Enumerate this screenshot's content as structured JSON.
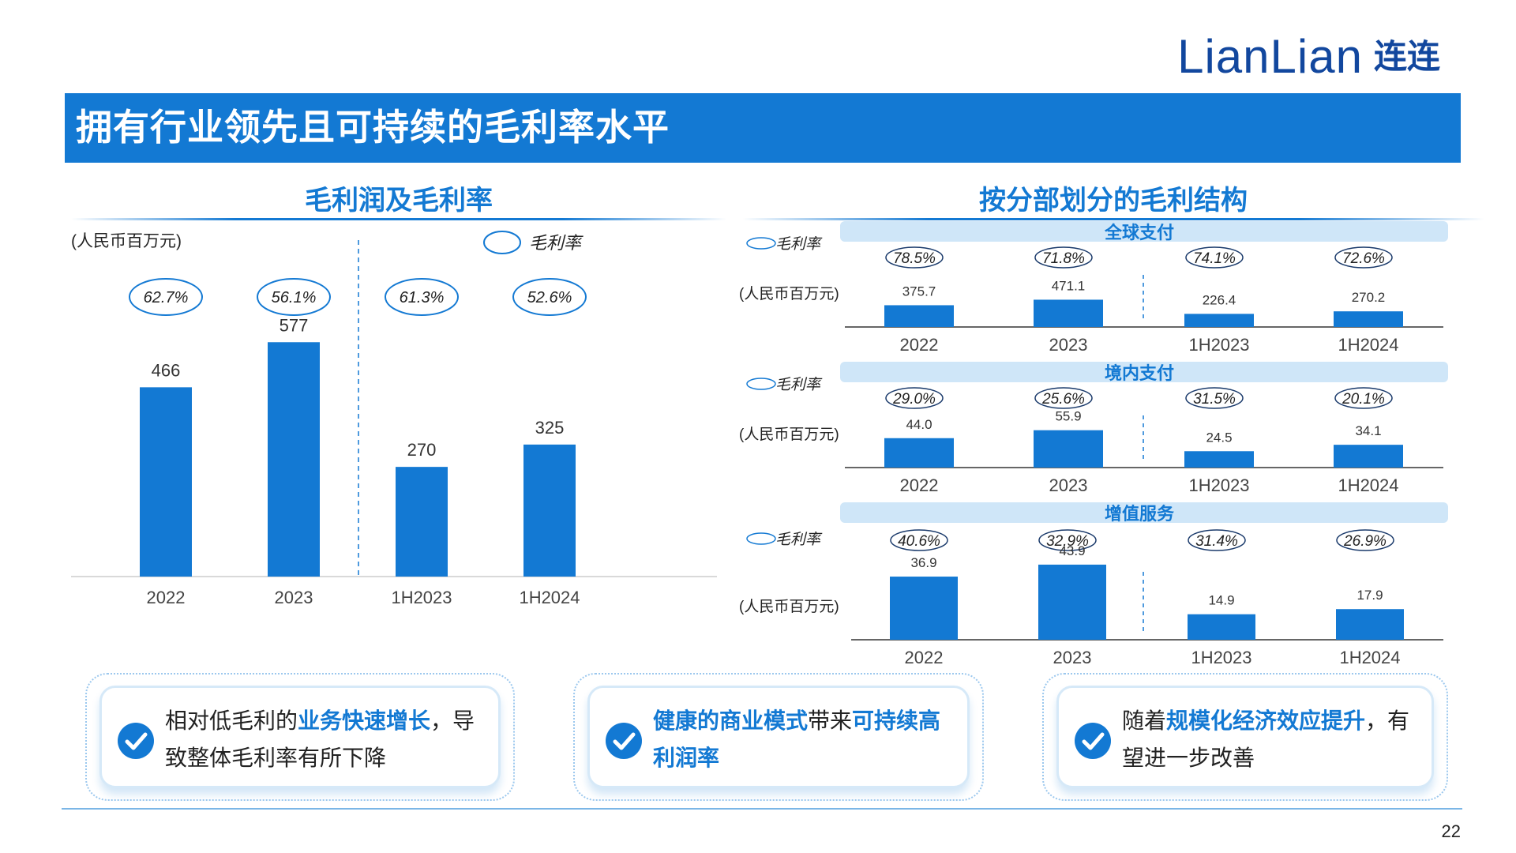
{
  "brand": {
    "wordmark": "LianLian",
    "cn": "连连",
    "color": "#12479e"
  },
  "title": "拥有行业领先且可持续的毛利率水平",
  "accent": "#1379d3",
  "left_section": {
    "title": "毛利润及毛利率",
    "unit": "(人民币百万元)",
    "legend_label": "毛利率"
  },
  "right_section": {
    "title": "按分部划分的毛利结构"
  },
  "chart_data": [
    {
      "type": "bar",
      "title": "毛利润及毛利率",
      "unit": "(人民币百万元)",
      "categories": [
        "2022",
        "2023",
        "1H2023",
        "1H2024"
      ],
      "values": [
        466,
        577,
        270,
        325
      ],
      "value_labels": [
        "466",
        "577",
        "270",
        "325"
      ],
      "margins": [
        "62.7%",
        "56.1%",
        "61.3%",
        "52.6%"
      ],
      "margin_legend": "毛利率",
      "ylim": [
        0,
        700
      ]
    },
    {
      "type": "bar",
      "title": "全球支付",
      "unit": "(人民币百万元)",
      "categories": [
        "2022",
        "2023",
        "1H2023",
        "1H2024"
      ],
      "values": [
        375.7,
        471.1,
        226.4,
        270.2
      ],
      "value_labels": [
        "375.7",
        "471.1",
        "226.4",
        "270.2"
      ],
      "margins": [
        "78.5%",
        "71.8%",
        "74.1%",
        "72.6%"
      ],
      "margin_legend": "毛利率",
      "ylim": [
        0,
        1500
      ]
    },
    {
      "type": "bar",
      "title": "境内支付",
      "unit": "(人民币百万元)",
      "categories": [
        "2022",
        "2023",
        "1H2023",
        "1H2024"
      ],
      "values": [
        44.0,
        55.9,
        24.5,
        34.1
      ],
      "value_labels": [
        "44.0",
        "55.9",
        "24.5",
        "34.1"
      ],
      "margins": [
        "29.0%",
        "25.6%",
        "31.5%",
        "20.1%"
      ],
      "margin_legend": "毛利率",
      "ylim": [
        0,
        130
      ]
    },
    {
      "type": "bar",
      "title": "增值服务",
      "unit": "(人民币百万元)",
      "categories": [
        "2022",
        "2023",
        "1H2023",
        "1H2024"
      ],
      "values": [
        36.9,
        43.9,
        14.9,
        17.9
      ],
      "value_labels": [
        "36.9",
        "43.9",
        "14.9",
        "17.9"
      ],
      "margins": [
        "40.6%",
        "32.9%",
        "31.4%",
        "26.9%"
      ],
      "margin_legend": "毛利率",
      "ylim": [
        0,
        60
      ]
    }
  ],
  "cards": [
    {
      "p1": "相对低毛利的",
      "b1": "业务快速增长",
      "p2": "，导致整体毛利率有所下降",
      "b2": "",
      "p3": ""
    },
    {
      "p1": "",
      "b1": "健康的商业模式",
      "p2": "带来",
      "b2": "可持续高利润率",
      "p3": ""
    },
    {
      "p1": "随着",
      "b1": "规模化经济效应提升",
      "p2": "，有望进一步改善",
      "b2": "",
      "p3": ""
    }
  ],
  "check_icon": "checkmark-circle-icon",
  "page_number": "22"
}
